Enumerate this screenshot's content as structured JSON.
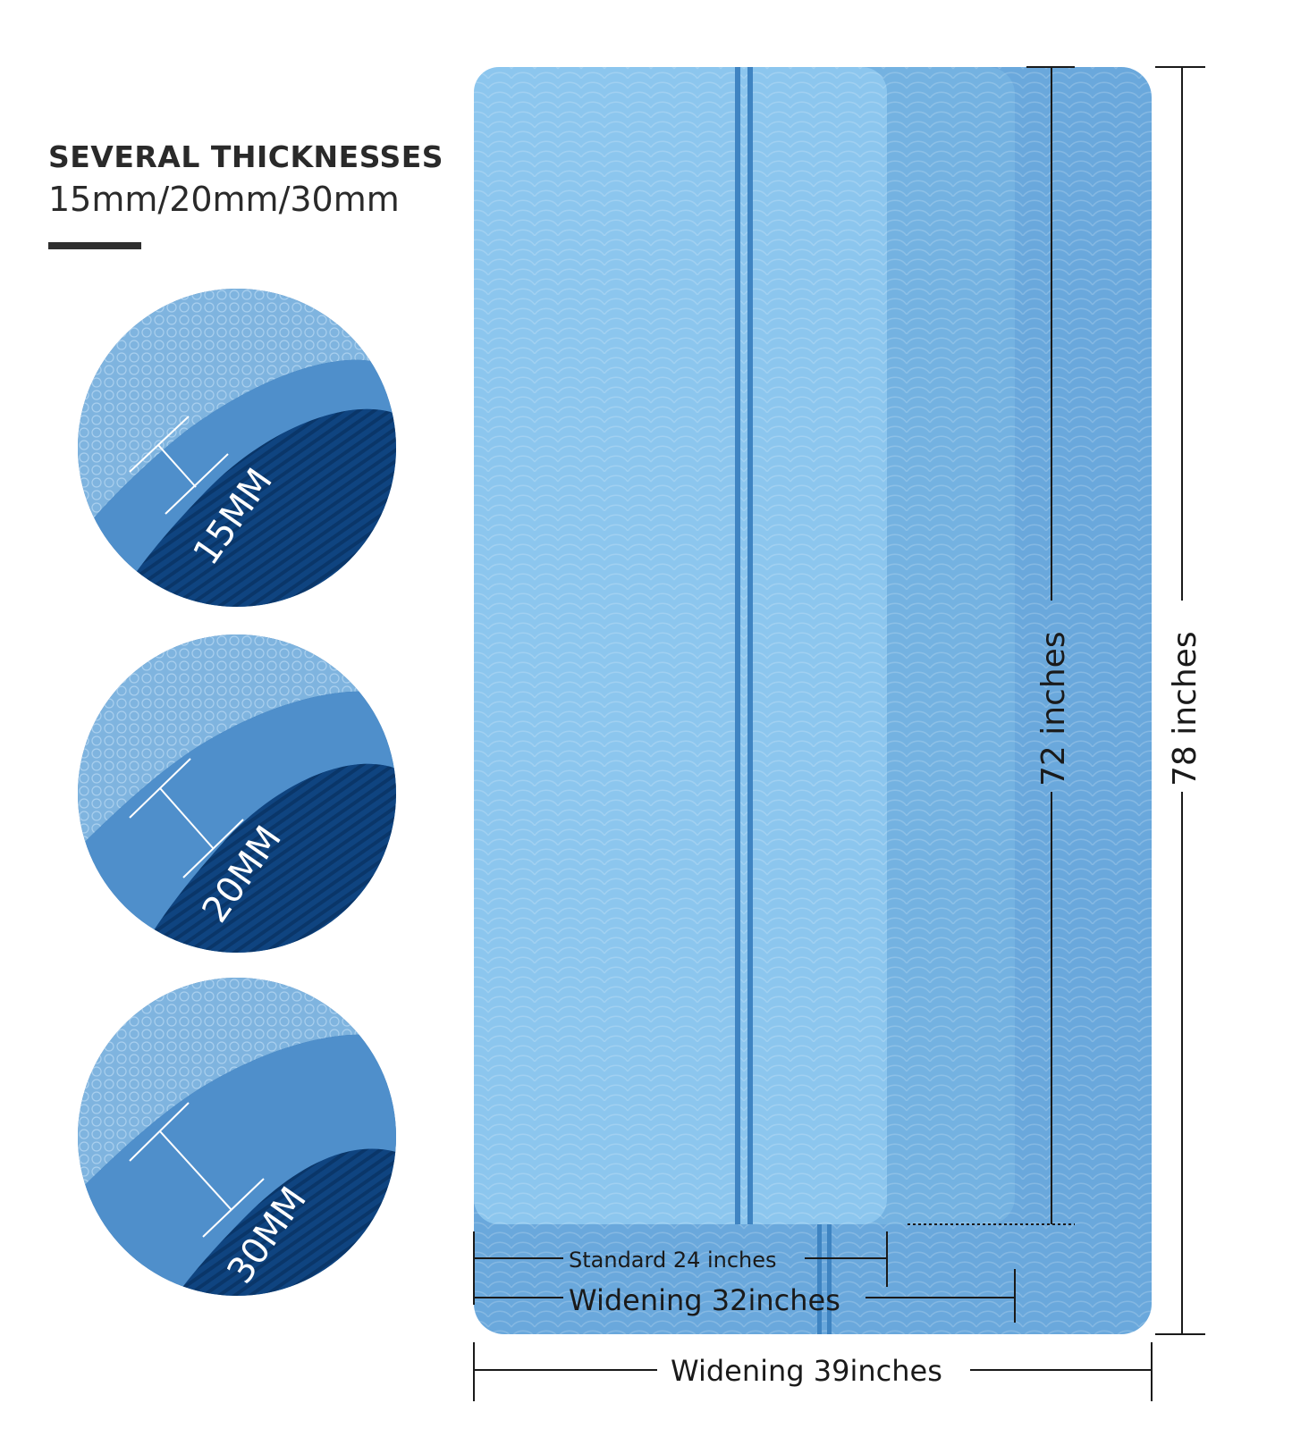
{
  "heading": {
    "title": "SEVERAL THICKNESSES",
    "subtitle": "15mm/20mm/30mm"
  },
  "thickness_circles": [
    {
      "label": "15MM"
    },
    {
      "label": "20MM"
    },
    {
      "label": "30MM"
    }
  ],
  "dimensions": {
    "length_standard": "72 inches",
    "length_wide": "78 inches",
    "width_standard": "Standard 24 inches",
    "width_medium": "Widening 32inches",
    "width_wide": "Widening 39inches"
  },
  "colors": {
    "mat_light": "#8cc6ee",
    "mat_mid": "#74b2e1",
    "mat_back": "#6aa8dc",
    "stripe": "#3f84c2",
    "foam_dark": "#0e3f78",
    "text": "#1a1a1a"
  }
}
